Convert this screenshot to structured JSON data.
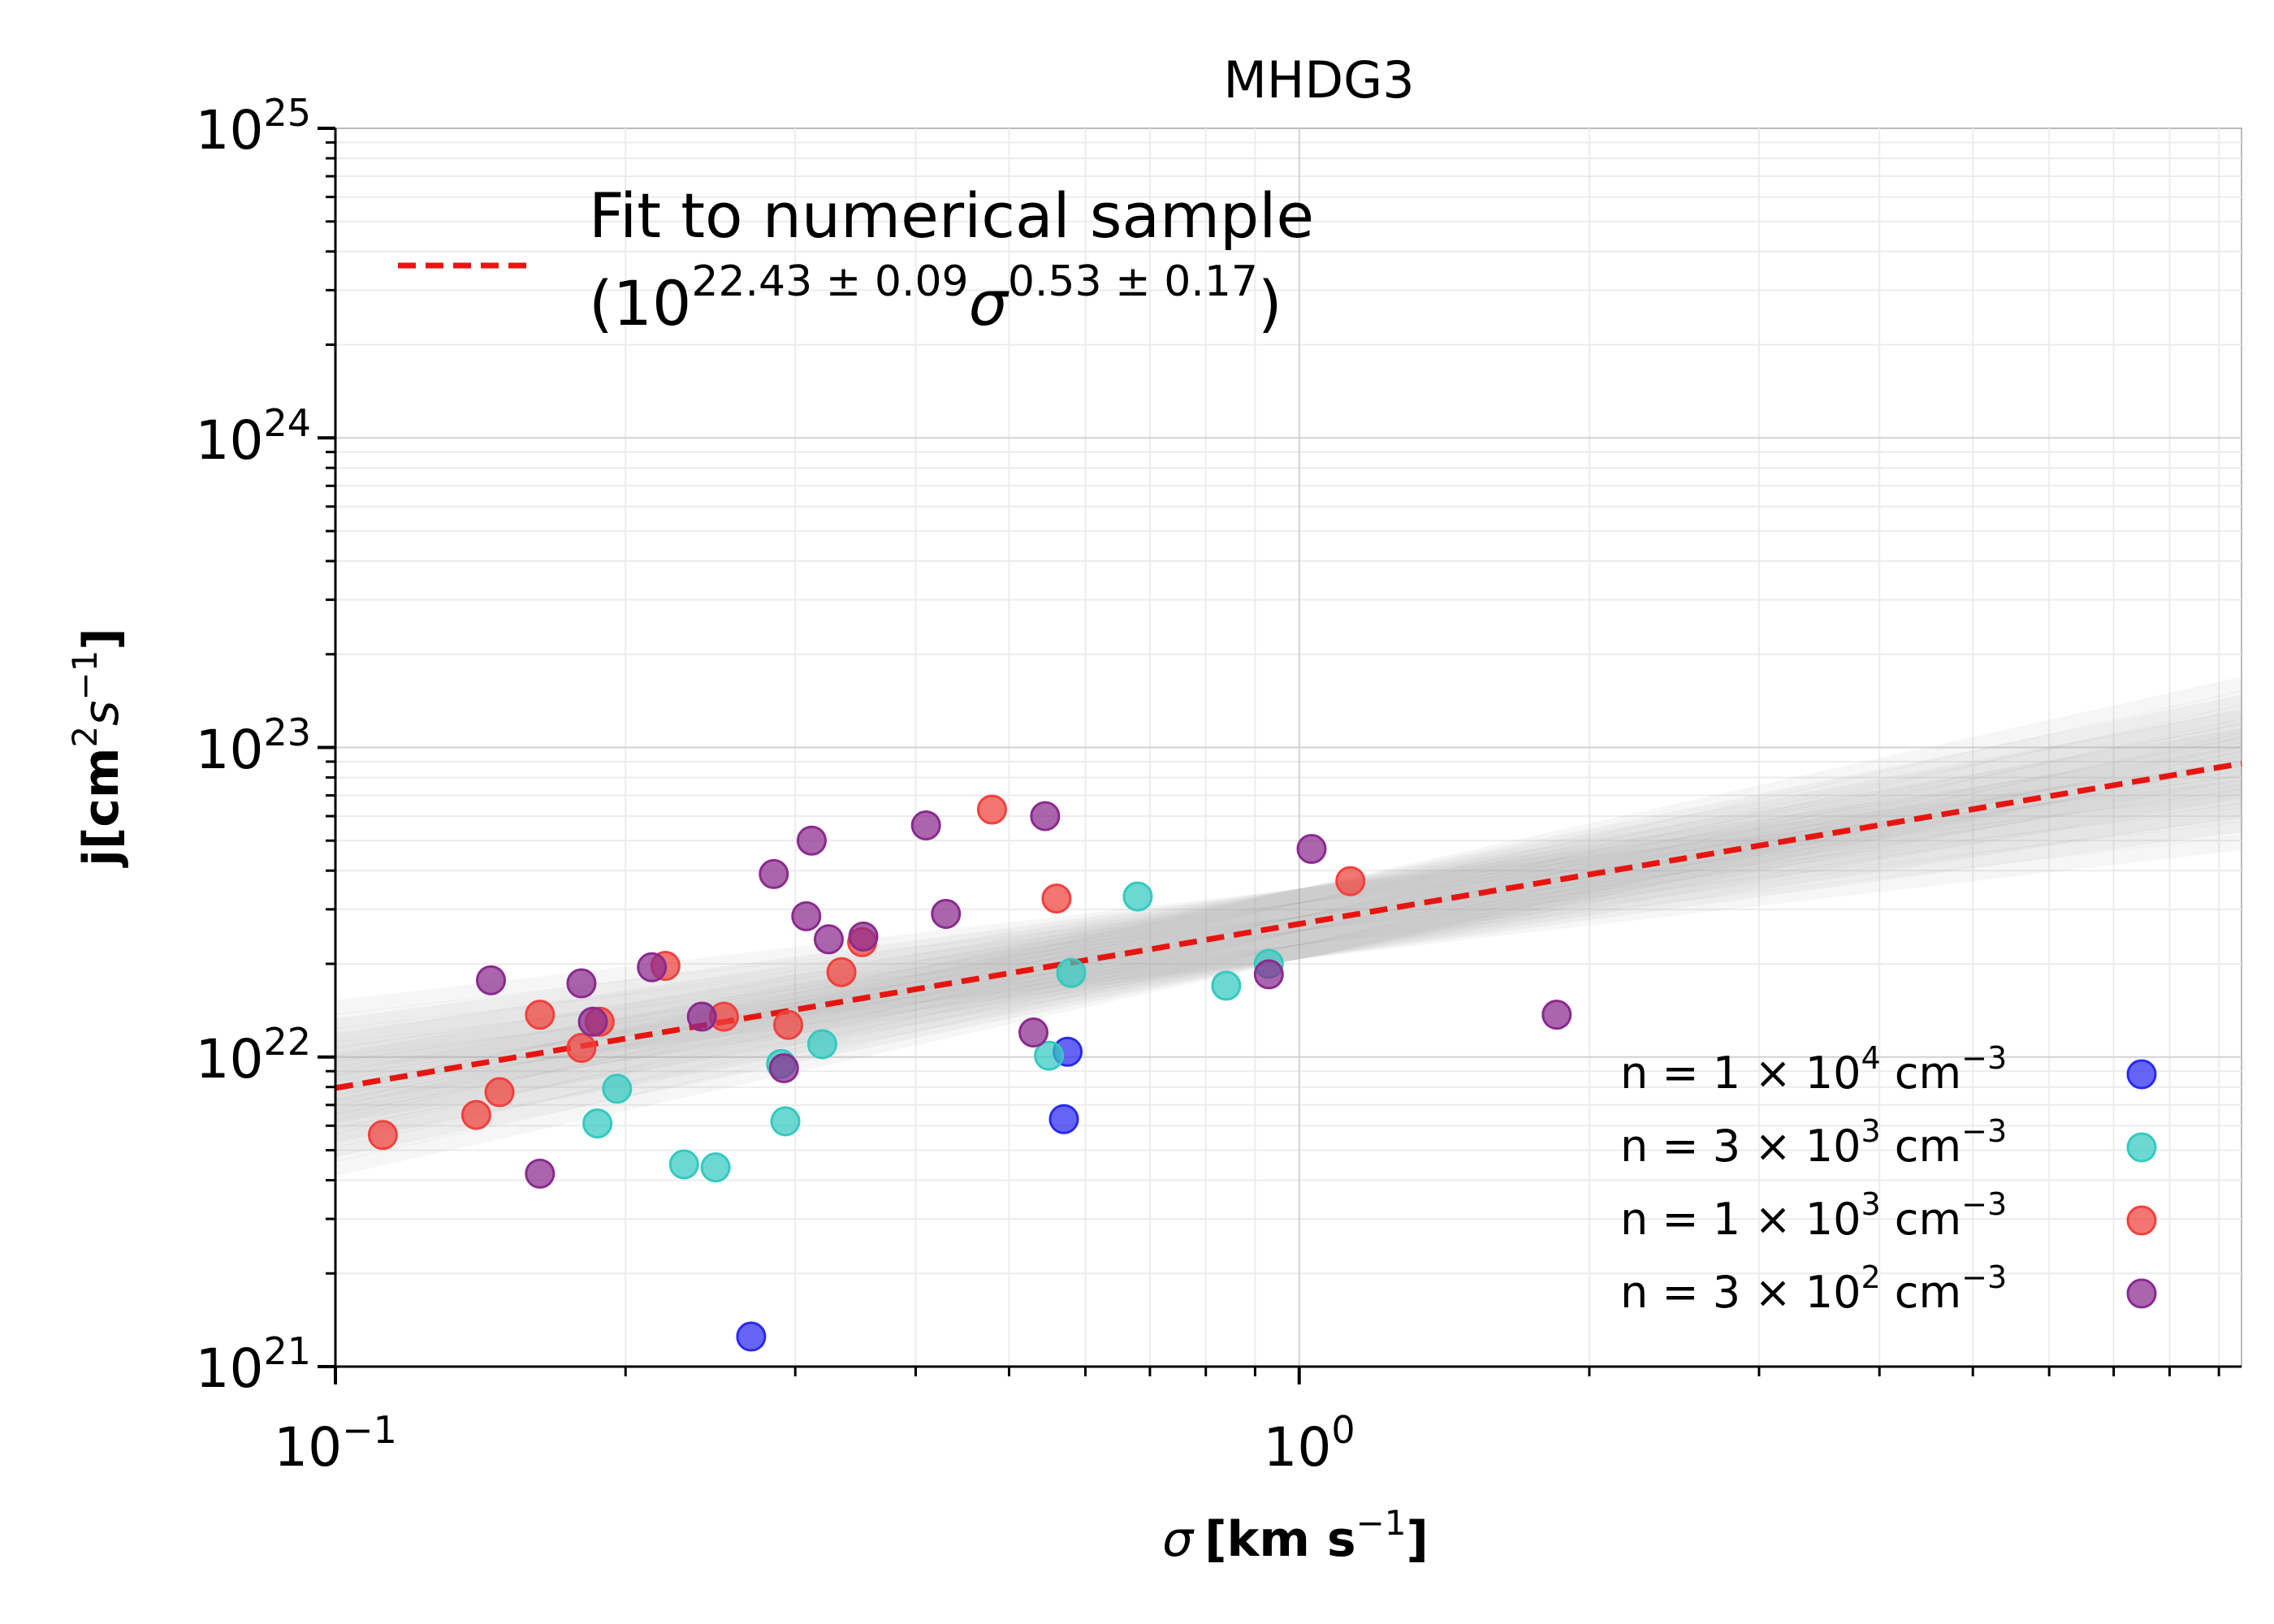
{
  "chart_data": {
    "type": "scatter",
    "title": "MHDG3",
    "xscale": "log",
    "yscale": "log",
    "xlim": [
      0.1,
      9.5
    ],
    "ylim": [
      1e+21,
      1e+25
    ],
    "grid": true,
    "xlabel": {
      "symbol": "σ",
      "unit": "[km s",
      "exp": "−1",
      "close": "]"
    },
    "ylabel": {
      "symbol": "j",
      "unit": "[cm",
      "exp1": "2",
      "mid": "s",
      "exp2": "−1",
      "close": "]"
    },
    "x_ticks": [
      {
        "value": 0.1,
        "base": "10",
        "exp": "−1"
      },
      {
        "value": 1,
        "base": "10",
        "exp": "0"
      }
    ],
    "y_ticks": [
      {
        "value": 1e+21,
        "base": "10",
        "exp": "21"
      },
      {
        "value": 1e+22,
        "base": "10",
        "exp": "22"
      },
      {
        "value": 1e+23,
        "base": "10",
        "exp": "23"
      },
      {
        "value": 1e+24,
        "base": "10",
        "exp": "24"
      },
      {
        "value": 1e+25,
        "base": "10",
        "exp": "25"
      }
    ],
    "fit": {
      "color": "#e8140f",
      "log_amplitude": 22.43,
      "slope": 0.53,
      "label_line1": "Fit to numerical sample",
      "label_open": "(10",
      "label_amp_exp": "22.43 ± 0.09",
      "label_sigma": "σ",
      "label_slope_exp": "0.53 ± 0.17",
      "label_close": ")"
    },
    "legend_position": "lower-right",
    "series": [
      {
        "name": "n = 1 × 10^4 cm^-3",
        "label_prefix": "n  = 1 × 10",
        "label_exp": "4",
        "label_unit": " cm",
        "label_unit_exp": "−3",
        "color": "#2929ee",
        "points": [
          [
            0.27,
            1.25e+21
          ],
          [
            0.57,
            6.3e+21
          ],
          [
            0.575,
            1.04e+22
          ]
        ]
      },
      {
        "name": "n = 3 × 10^3 cm^-3",
        "label_prefix": "n  = 3 × 10",
        "label_exp": "3",
        "label_unit": " cm",
        "label_unit_exp": "−3",
        "color": "#35c9c0",
        "points": [
          [
            0.187,
            6.1e+21
          ],
          [
            0.196,
            7.9e+21
          ],
          [
            0.23,
            4.5e+21
          ],
          [
            0.248,
            4.4e+21
          ],
          [
            0.29,
            9.5e+21
          ],
          [
            0.293,
            6.2e+21
          ],
          [
            0.32,
            1.1e+22
          ],
          [
            0.55,
            1.01e+22
          ],
          [
            0.58,
            1.87e+22
          ],
          [
            0.68,
            3.3e+22
          ],
          [
            0.84,
            1.7e+22
          ],
          [
            0.93,
            2e+22
          ]
        ]
      },
      {
        "name": "n = 1 × 10^3 cm^-3",
        "label_prefix": "n  = 1 × 10",
        "label_exp": "3",
        "label_unit": " cm",
        "label_unit_exp": "−3",
        "color": "#f0413c",
        "points": [
          [
            0.112,
            5.6e+21
          ],
          [
            0.14,
            6.5e+21
          ],
          [
            0.148,
            7.7e+21
          ],
          [
            0.163,
            1.37e+22
          ],
          [
            0.18,
            1.07e+22
          ],
          [
            0.188,
            1.3e+22
          ],
          [
            0.22,
            1.97e+22
          ],
          [
            0.253,
            1.35e+22
          ],
          [
            0.295,
            1.27e+22
          ],
          [
            0.335,
            1.88e+22
          ],
          [
            0.352,
            2.35e+22
          ],
          [
            0.48,
            6.3e+22
          ],
          [
            0.56,
            3.25e+22
          ],
          [
            1.13,
            3.7e+22
          ]
        ]
      },
      {
        "name": "n = 3 × 10^2 cm^-3",
        "label_prefix": "n  = 3 × 10",
        "label_exp": "2",
        "label_unit": " cm",
        "label_unit_exp": "−3",
        "color": "#8a2a8e",
        "points": [
          [
            0.145,
            1.77e+22
          ],
          [
            0.163,
            4.2e+21
          ],
          [
            0.18,
            1.73e+22
          ],
          [
            0.185,
            1.3e+22
          ],
          [
            0.213,
            1.95e+22
          ],
          [
            0.24,
            1.35e+22
          ],
          [
            0.285,
            3.9e+22
          ],
          [
            0.292,
            9.2e+21
          ],
          [
            0.308,
            2.85e+22
          ],
          [
            0.312,
            5e+22
          ],
          [
            0.325,
            2.4e+22
          ],
          [
            0.353,
            2.45e+22
          ],
          [
            0.41,
            5.6e+22
          ],
          [
            0.43,
            2.9e+22
          ],
          [
            0.53,
            1.2e+22
          ],
          [
            0.545,
            6e+22
          ],
          [
            0.93,
            1.85e+22
          ],
          [
            1.03,
            4.7e+22
          ],
          [
            1.85,
            1.37e+22
          ]
        ]
      }
    ]
  }
}
